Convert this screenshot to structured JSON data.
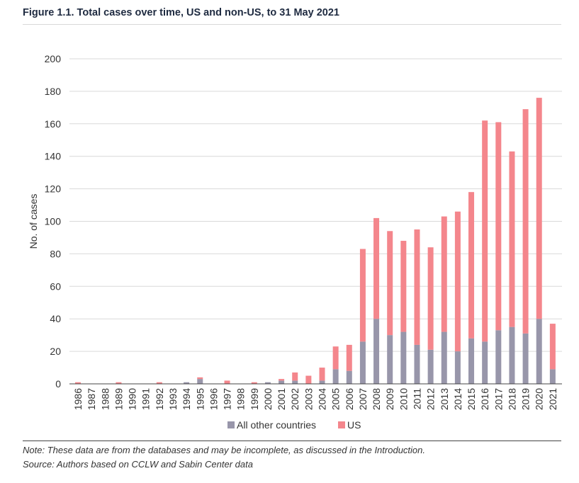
{
  "header": {
    "title": "Figure 1.1. Total cases over time, US and non-US, to 31 May 2021"
  },
  "footer": {
    "note": "Note: These data are from the databases and may be incomplete, as discussed in the Introduction.",
    "source": "Source: Authors based on CCLW and Sabin Center data"
  },
  "colors": {
    "other": "#9896aa",
    "us": "#f4868c",
    "grid": "#d9d9d9",
    "axis": "#444444"
  },
  "chart_data": {
    "type": "bar",
    "stacked": true,
    "title": "Figure 1.1. Total cases over time, US and non-US, to 31 May 2021",
    "xlabel": "",
    "ylabel": "No. of cases",
    "ylim": [
      0,
      200
    ],
    "yticks": [
      0,
      20,
      40,
      60,
      80,
      100,
      120,
      140,
      160,
      180,
      200
    ],
    "grid": true,
    "legend_position": "bottom",
    "categories": [
      "1986",
      "1987",
      "1988",
      "1989",
      "1990",
      "1991",
      "1992",
      "1993",
      "1994",
      "1995",
      "1996",
      "1997",
      "1998",
      "1999",
      "2000",
      "2001",
      "2002",
      "2003",
      "2004",
      "2005",
      "2006",
      "2007",
      "2008",
      "2009",
      "2010",
      "2011",
      "2012",
      "2013",
      "2014",
      "2015",
      "2016",
      "2017",
      "2018",
      "2019",
      "2020",
      "2021"
    ],
    "series": [
      {
        "name": "All other countries",
        "color": "#9896aa",
        "values": [
          0,
          0,
          0,
          0,
          0,
          0,
          0,
          0,
          1,
          3,
          0,
          0,
          0,
          0,
          1,
          2,
          2,
          0,
          2,
          9,
          8,
          26,
          40,
          30,
          32,
          24,
          21,
          32,
          20,
          28,
          26,
          33,
          35,
          31,
          40,
          9
        ]
      },
      {
        "name": "US",
        "color": "#f4868c",
        "values": [
          1,
          0,
          0,
          1,
          0,
          0,
          1,
          0,
          0,
          1,
          0,
          2,
          0,
          1,
          0,
          1,
          5,
          5,
          8,
          14,
          16,
          57,
          62,
          64,
          56,
          71,
          63,
          71,
          86,
          90,
          136,
          128,
          108,
          138,
          136,
          28
        ]
      }
    ]
  }
}
